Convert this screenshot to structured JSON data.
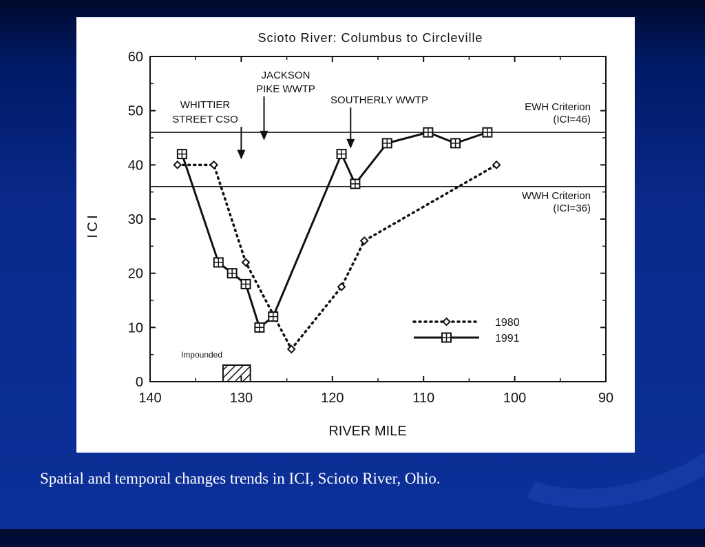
{
  "slide": {
    "caption": "Spatial and temporal changes trends in ICI, Scioto River, Ohio.",
    "background_color": "#0a2a8c",
    "caption_color": "#ffffff"
  },
  "chart_data": {
    "type": "line",
    "title": "Scioto River: Columbus to Circleville",
    "xlabel": "RIVER MILE",
    "ylabel": "ICI",
    "xlim": [
      140,
      90
    ],
    "ylim": [
      0,
      60
    ],
    "x_ticks": [
      "140",
      "130",
      "120",
      "110",
      "100",
      "90"
    ],
    "y_ticks": [
      "0",
      "10",
      "20",
      "30",
      "40",
      "50",
      "60"
    ],
    "grid": false,
    "legend_position": "bottom-right",
    "series": [
      {
        "name": "1980",
        "style": "dotted",
        "marker": "diamond",
        "points": [
          {
            "x": 137,
            "y": 40
          },
          {
            "x": 133,
            "y": 40
          },
          {
            "x": 129.5,
            "y": 22
          },
          {
            "x": 124.5,
            "y": 6
          },
          {
            "x": 119,
            "y": 17.5
          },
          {
            "x": 116.5,
            "y": 26
          },
          {
            "x": 102,
            "y": 40
          }
        ]
      },
      {
        "name": "1991",
        "style": "solid",
        "marker": "boxed-plus",
        "points": [
          {
            "x": 136.5,
            "y": 42
          },
          {
            "x": 132.5,
            "y": 22
          },
          {
            "x": 131,
            "y": 20
          },
          {
            "x": 129.5,
            "y": 18
          },
          {
            "x": 128,
            "y": 10
          },
          {
            "x": 126.5,
            "y": 12
          },
          {
            "x": 119,
            "y": 42
          },
          {
            "x": 117.5,
            "y": 36.5
          },
          {
            "x": 114,
            "y": 44
          },
          {
            "x": 109.5,
            "y": 46
          },
          {
            "x": 106.5,
            "y": 44
          },
          {
            "x": 103,
            "y": 46
          }
        ]
      }
    ],
    "reference_lines": [
      {
        "y": 46,
        "label_line1": "EWH Criterion",
        "label_line2": "(ICI=46)"
      },
      {
        "y": 36,
        "label_line1": "WWH Criterion",
        "label_line2": "(ICI=36)"
      }
    ],
    "annotations": [
      {
        "line1": "WHITTIER",
        "line2": "STREET CSO",
        "arrow_x": 130,
        "arrow_y": 41
      },
      {
        "line1": "JACKSON",
        "line2": "PIKE WWTP",
        "arrow_x": 127.5,
        "arrow_y": 44.5
      },
      {
        "line1": "SOUTHERLY WWTP",
        "line2": "",
        "arrow_x": 118,
        "arrow_y": 43
      }
    ],
    "impounded_region": {
      "label": "Impounded",
      "x_start": 132,
      "x_end": 129
    }
  }
}
